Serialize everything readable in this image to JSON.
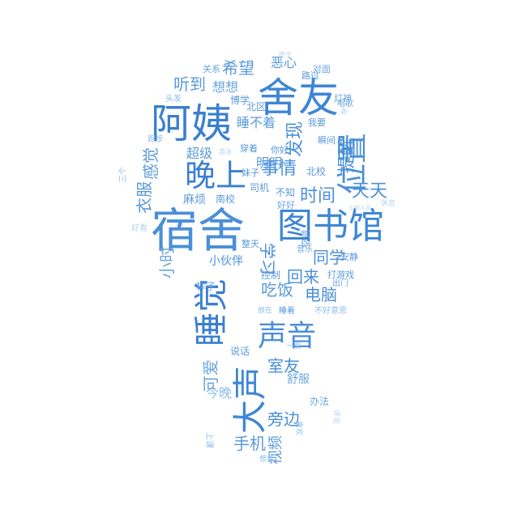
{
  "cloud": {
    "shape": "lightbulb",
    "palette": [
      "#3a7fd0",
      "#4d8fd6",
      "#6aa6df",
      "#8cbde8",
      "#b5d3ef"
    ],
    "words": [
      {
        "text": "宿舍",
        "color": "#4a8fd8"
      },
      {
        "text": "图书馆",
        "color": "#3e86d5"
      },
      {
        "text": "阿姨",
        "color": "#3a7fd0"
      },
      {
        "text": "舍友",
        "color": "#3e86d5"
      },
      {
        "text": "位置",
        "color": "#4a8fd8"
      },
      {
        "text": "晚上",
        "color": "#3a7fd0"
      },
      {
        "text": "睡觉",
        "color": "#3a7fd0"
      },
      {
        "text": "声音",
        "color": "#4a8fd8"
      },
      {
        "text": "大声",
        "color": "#3e86d5"
      },
      {
        "text": "事情",
        "color": "#4a8fd8"
      },
      {
        "text": "时间",
        "color": "#4a8fd8"
      },
      {
        "text": "天天",
        "color": "#4a8fd8"
      },
      {
        "text": "希望",
        "color": "#5a9ad9"
      },
      {
        "text": "听到",
        "color": "#5a9ad9"
      },
      {
        "text": "感觉",
        "color": "#5a9ad9"
      },
      {
        "text": "衣服",
        "color": "#5a9ad9"
      },
      {
        "text": "发现",
        "color": "#4a8fd8"
      },
      {
        "text": "提醒",
        "color": "#4a8fd8"
      },
      {
        "text": "学习",
        "color": "#4a8fd8"
      },
      {
        "text": "同学",
        "color": "#4a8fd8"
      },
      {
        "text": "回来",
        "color": "#4a8fd8"
      },
      {
        "text": "电脑",
        "color": "#4a8fd8"
      },
      {
        "text": "吃饭",
        "color": "#5a9ad9"
      },
      {
        "text": "小时",
        "color": "#6aa6df"
      },
      {
        "text": "室友",
        "color": "#4a8fd8"
      },
      {
        "text": "可爱",
        "color": "#6aa6df"
      },
      {
        "text": "旁边",
        "color": "#4a8fd8"
      },
      {
        "text": "手机",
        "color": "#5a9ad9"
      },
      {
        "text": "视频",
        "color": "#5a9ad9"
      },
      {
        "text": "今晚",
        "color": "#8cbde8"
      },
      {
        "text": "超级",
        "color": "#5a9ad9"
      },
      {
        "text": "明明",
        "color": "#5a9ad9"
      },
      {
        "text": "麻烦",
        "color": "#5a9ad9"
      },
      {
        "text": "睡不着",
        "color": "#5a9ad9"
      },
      {
        "text": "想想",
        "color": "#6aa6df"
      },
      {
        "text": "恶心",
        "color": "#5a9ad9"
      },
      {
        "text": "小伙伴",
        "color": "#4a8fd8"
      },
      {
        "text": "控制",
        "color": "#5a9ad9"
      },
      {
        "text": "舒服",
        "color": "#6aa6df"
      },
      {
        "text": "样子",
        "color": "#6aa6df"
      },
      {
        "text": "说话",
        "color": "#5a9ad9"
      },
      {
        "text": "办法",
        "color": "#6aa6df"
      },
      {
        "text": "不知",
        "color": "#5a9ad9"
      },
      {
        "text": "司机",
        "color": "#5a9ad9"
      },
      {
        "text": "南校",
        "color": "#5a9ad9"
      },
      {
        "text": "北校",
        "color": "#5a9ad9"
      },
      {
        "text": "北区",
        "color": "#5a9ad9"
      },
      {
        "text": "博学",
        "color": "#5a9ad9"
      },
      {
        "text": "关系",
        "color": "#6aa6df"
      },
      {
        "text": "对面",
        "color": "#6aa6df"
      },
      {
        "text": "路过",
        "color": "#5a9ad9"
      },
      {
        "text": "灯神",
        "color": "#6aa6df"
      },
      {
        "text": "唱歌",
        "color": "#6aa6df"
      },
      {
        "text": "我要",
        "color": "#5a9ad9"
      },
      {
        "text": "瞬间",
        "color": "#5a9ad9"
      },
      {
        "text": "你好",
        "color": "#5a9ad9"
      },
      {
        "text": "穿着",
        "color": "#5a9ad9"
      },
      {
        "text": "妹子",
        "color": "#5a9ad9"
      },
      {
        "text": "好好",
        "color": "#6aa6df"
      },
      {
        "text": "安静",
        "color": "#5a9ad9"
      },
      {
        "text": "打游戏",
        "color": "#5a9ad9"
      },
      {
        "text": "出门",
        "color": "#6aa6df"
      },
      {
        "text": "空调",
        "color": "#5a9ad9"
      },
      {
        "text": "音乐",
        "color": "#6aa6df"
      },
      {
        "text": "整天",
        "color": "#5a9ad9"
      },
      {
        "text": "睡着",
        "color": "#5a9ad9"
      },
      {
        "text": "放在",
        "color": "#8cbde8"
      },
      {
        "text": "不好意思",
        "color": "#8cbde8"
      },
      {
        "text": "一会",
        "color": "#8cbde8"
      },
      {
        "text": "上课",
        "color": "#8cbde8"
      },
      {
        "text": "想着",
        "color": "#8cbde8"
      },
      {
        "text": "喜欢",
        "color": "#8cbde8"
      },
      {
        "text": "跑步",
        "color": "#8cbde8"
      },
      {
        "text": "头发",
        "color": "#8cbde8"
      },
      {
        "text": "三个",
        "color": "#8cbde8"
      },
      {
        "text": "好看",
        "color": "#b5d3ef"
      },
      {
        "text": "休息",
        "color": "#b5d3ef"
      },
      {
        "text": "评论",
        "color": "#b5d3ef"
      },
      {
        "text": "修了",
        "color": "#b5d3ef"
      },
      {
        "text": "终于",
        "color": "#b5d3ef"
      },
      {
        "text": "游泳",
        "color": "#b5d3ef"
      },
      {
        "text": "工作人员",
        "color": "#b5d3ef"
      }
    ]
  }
}
